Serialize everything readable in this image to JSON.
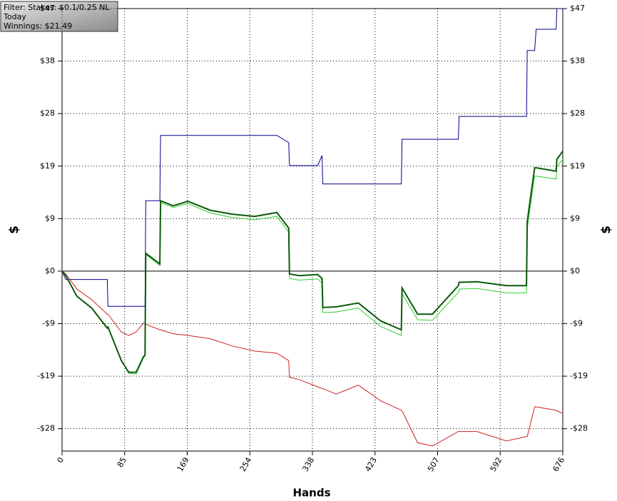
{
  "chart_data": {
    "type": "line",
    "info_box": [
      "Filter: Stakes: $0.1/0.25 NL",
      "Today",
      "Winnings: $21.49"
    ],
    "xlabel": "Hands",
    "ylabel": "$",
    "x": [
      0,
      5,
      20,
      40,
      61,
      62,
      80,
      90,
      100,
      110,
      112,
      113,
      132,
      133,
      150,
      170,
      200,
      230,
      260,
      290,
      306,
      307,
      320,
      345,
      351,
      352,
      370,
      400,
      430,
      458,
      459,
      480,
      500,
      535,
      536,
      560,
      600,
      627,
      628,
      638,
      640,
      667,
      668,
      676
    ],
    "series": [
      {
        "color": "#00008b",
        "values": [
          0,
          -1.5,
          -1.5,
          -1.5,
          -1.5,
          -6.3,
          -6.3,
          -6.3,
          -6.3,
          -6.3,
          -6.3,
          12.6,
          12.6,
          24.3,
          24.3,
          24.3,
          24.3,
          24.3,
          24.3,
          24.3,
          23,
          18.9,
          18.9,
          18.9,
          20.7,
          15.6,
          15.6,
          15.6,
          15.6,
          15.6,
          23.6,
          23.6,
          23.6,
          23.6,
          27.7,
          27.7,
          27.7,
          27.7,
          39.5,
          39.5,
          43.3,
          43.3,
          47,
          47
        ]
      },
      {
        "color": "#cc2222",
        "values": [
          0,
          -0.5,
          -3.2,
          -5.1,
          -7.7,
          -7.7,
          -10.9,
          -11.5,
          -10.9,
          -9.3,
          -9.3,
          -9.5,
          -10.5,
          -10.5,
          -11.2,
          -11.5,
          -12.1,
          -13.4,
          -14.3,
          -14.7,
          -16,
          -19,
          -19.4,
          -20.7,
          -21,
          -21,
          -22,
          -20.4,
          -23.2,
          -24.9,
          -25,
          -30.7,
          -31.3,
          -28.7,
          -28.7,
          -28.7,
          -30.4,
          -29.6,
          -29.6,
          -24.3,
          -24.3,
          -24.9,
          -25,
          -25.5
        ]
      },
      {
        "color": "#33cc33",
        "values": [
          0,
          -0.8,
          -4.5,
          -6.6,
          -10.2,
          -10,
          -16,
          -18.3,
          -18.4,
          -15.5,
          -15.2,
          3,
          1,
          12.3,
          11.4,
          12.1,
          10.4,
          9.6,
          9.2,
          9.8,
          7,
          -1.3,
          -1.6,
          -1.4,
          -2.1,
          -7.4,
          -7.3,
          -6.6,
          -9.9,
          -11.5,
          -4,
          -8.7,
          -8.8,
          -3.8,
          -3.2,
          -3.1,
          -3.9,
          -3.9,
          7.6,
          17,
          17,
          16.5,
          18.7,
          20
        ]
      },
      {
        "color": "#0a5a0a",
        "values": [
          0,
          -0.8,
          -4.5,
          -6.6,
          -10.2,
          -10,
          -16,
          -18.1,
          -18.1,
          -15.3,
          -15,
          3.2,
          1.3,
          12.6,
          11.7,
          12.5,
          10.9,
          10.2,
          9.8,
          10.5,
          7.7,
          -0.5,
          -0.8,
          -0.6,
          -1.3,
          -6.5,
          -6.4,
          -5.7,
          -8.9,
          -10.5,
          -3,
          -7.7,
          -7.7,
          -2.6,
          -2,
          -1.9,
          -2.6,
          -2.6,
          8.9,
          18.5,
          18.5,
          17.9,
          20,
          21.49
        ]
      }
    ],
    "xlim": [
      0,
      676
    ],
    "xticks": [
      0,
      {
        "value": 84.5,
        "label": "85"
      },
      169,
      {
        "value": 253.5,
        "label": "254"
      },
      338,
      {
        "value": 422.5,
        "label": "423"
      },
      507,
      {
        "value": 591.5,
        "label": "592"
      },
      676
    ],
    "ylim": [
      -32.2,
      47
    ],
    "yticks": [
      {
        "value": 47,
        "label": "$47"
      },
      {
        "value": 37.6,
        "label": "$38"
      },
      {
        "value": 28.2,
        "label": "$28"
      },
      {
        "value": 18.8,
        "label": "$19"
      },
      {
        "value": 9.4,
        "label": "$9"
      },
      {
        "value": 0,
        "label": "$0"
      },
      {
        "value": -9.4,
        "label": "-$9"
      },
      {
        "value": -18.8,
        "label": "-$19"
      },
      {
        "value": -28.2,
        "label": "-$28"
      }
    ],
    "grid": true
  }
}
